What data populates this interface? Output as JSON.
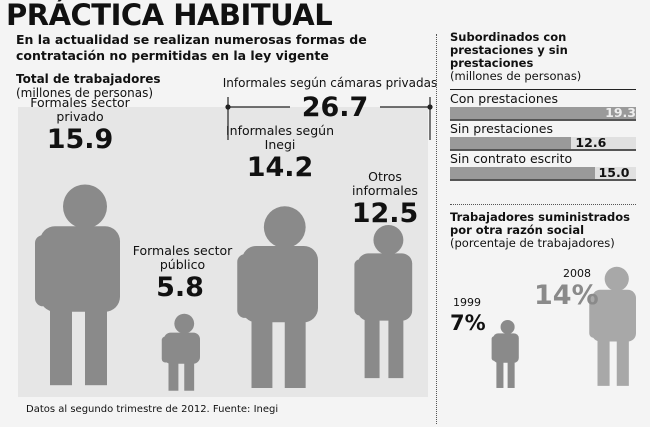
{
  "title": "PRÁCTICA HABITUAL",
  "subtitle": "En la actualidad se realizan numerosas formas de contratación no permitidas en la ley vigente",
  "footer": "Datos al segundo trimestre de 2012. Fuente: Inegi",
  "chart_data": [
    {
      "type": "pictogram",
      "title": "Total de trabajadores",
      "unit": "(millones de personas)",
      "categories": [
        "Formales sector privado",
        "Formales sector público",
        "Informales según Inegi",
        "Otros informales"
      ],
      "values": [
        15.9,
        5.8,
        14.2,
        12.5
      ],
      "value_labels": [
        "15.9",
        "5.8",
        "14.2",
        "12.5"
      ],
      "bracket": {
        "label": "Informales según cámaras privadas",
        "value": "26.7"
      }
    },
    {
      "type": "bar",
      "title": "Subordinados con prestaciones y sin prestaciones",
      "unit": "(millones de personas)",
      "categories": [
        "Con prestaciones",
        "Sin prestaciones",
        "Sin contrato escrito"
      ],
      "values": [
        19.3,
        12.6,
        15.0
      ],
      "value_labels": [
        "19.3",
        "12.6",
        "15.0"
      ],
      "xlim": [
        0,
        19.3
      ]
    },
    {
      "type": "pictogram",
      "title": "Trabajadores suministrados por otra razón social",
      "unit": "(porcentaje de trabajadores)",
      "categories": [
        "1999",
        "2008"
      ],
      "values": [
        7,
        14
      ],
      "value_labels": [
        "7%",
        "14%"
      ]
    }
  ],
  "colors": {
    "figure": "#8a8a8a",
    "figure_light": "#a8a8a8",
    "bar": "#9a9a9a",
    "bar_bg": "#e0e0e0"
  }
}
